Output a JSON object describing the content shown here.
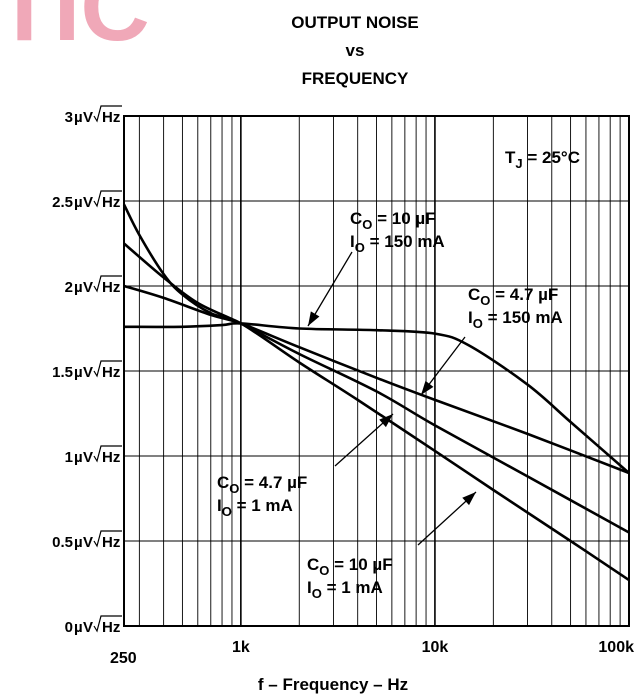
{
  "watermark_text": "TIC",
  "watermark_color": "#f0a8b8",
  "chart_data": {
    "type": "line",
    "title_lines": [
      "OUTPUT NOISE",
      "vs",
      "FREQUENCY"
    ],
    "xlabel": "f – Frequency – Hz",
    "ylabel": "",
    "x_scale": "log",
    "xlim": [
      250,
      100000
    ],
    "ylim": [
      0,
      3
    ],
    "grid": true,
    "x_ticks": [
      {
        "value": 250,
        "label": "250"
      },
      {
        "value": 1000,
        "label": "1k"
      },
      {
        "value": 10000,
        "label": "10k"
      },
      {
        "value": 100000,
        "label": "100k"
      }
    ],
    "y_ticks": [
      {
        "value": 0,
        "label": "0"
      },
      {
        "value": 0.5,
        "label": "0.5"
      },
      {
        "value": 1,
        "label": "1"
      },
      {
        "value": 1.5,
        "label": "1.5"
      },
      {
        "value": 2,
        "label": "2"
      },
      {
        "value": 2.5,
        "label": "2.5"
      },
      {
        "value": 3,
        "label": "3"
      }
    ],
    "y_unit_mu": "µ",
    "y_unit_v": "V",
    "y_unit_hz": "Hz",
    "series": [
      {
        "points": [
          [
            250,
            2.48
          ],
          [
            300,
            2.3
          ],
          [
            400,
            2.07
          ],
          [
            500,
            1.95
          ],
          [
            700,
            1.84
          ],
          [
            1000,
            1.78
          ],
          [
            2000,
            1.55
          ],
          [
            4000,
            1.33
          ],
          [
            10000,
            1.03
          ],
          [
            20000,
            0.8
          ],
          [
            50000,
            0.5
          ],
          [
            100000,
            0.27
          ]
        ]
      },
      {
        "points": [
          [
            250,
            2.25
          ],
          [
            400,
            2.05
          ],
          [
            600,
            1.9
          ],
          [
            1000,
            1.78
          ],
          [
            2000,
            1.6
          ],
          [
            5000,
            1.38
          ],
          [
            10000,
            1.18
          ],
          [
            30000,
            0.88
          ],
          [
            100000,
            0.55
          ]
        ]
      },
      {
        "points": [
          [
            250,
            2.0
          ],
          [
            400,
            1.93
          ],
          [
            700,
            1.83
          ],
          [
            1000,
            1.78
          ],
          [
            2000,
            1.64
          ],
          [
            5000,
            1.46
          ],
          [
            10000,
            1.33
          ],
          [
            30000,
            1.13
          ],
          [
            100000,
            0.9
          ]
        ]
      },
      {
        "points": [
          [
            250,
            1.76
          ],
          [
            500,
            1.76
          ],
          [
            800,
            1.77
          ],
          [
            1000,
            1.78
          ],
          [
            2000,
            1.75
          ],
          [
            5000,
            1.74
          ],
          [
            10000,
            1.72
          ],
          [
            15000,
            1.65
          ],
          [
            30000,
            1.42
          ],
          [
            50000,
            1.2
          ],
          [
            100000,
            0.9
          ]
        ]
      }
    ],
    "annotations": [
      {
        "line1_main": "C",
        "line1_sub": "O",
        "line1_rest": " = 10 µF",
        "line2_main": "I",
        "line2_sub": "O",
        "line2_rest": " = 150 mA"
      },
      {
        "line1_main": "C",
        "line1_sub": "O",
        "line1_rest": " = 4.7 µF",
        "line2_main": "I",
        "line2_sub": "O",
        "line2_rest": " = 150 mA"
      },
      {
        "line1_main": "C",
        "line1_sub": "O",
        "line1_rest": " = 4.7 µF",
        "line2_main": "I",
        "line2_sub": "O",
        "line2_rest": " = 1 mA"
      },
      {
        "line1_main": "C",
        "line1_sub": "O",
        "line1_rest": " = 10 µF",
        "line2_main": "I",
        "line2_sub": "O",
        "line2_rest": " = 1 mA"
      }
    ],
    "condition": {
      "main": "T",
      "sub": "J",
      "rest": " = 25°C"
    }
  }
}
